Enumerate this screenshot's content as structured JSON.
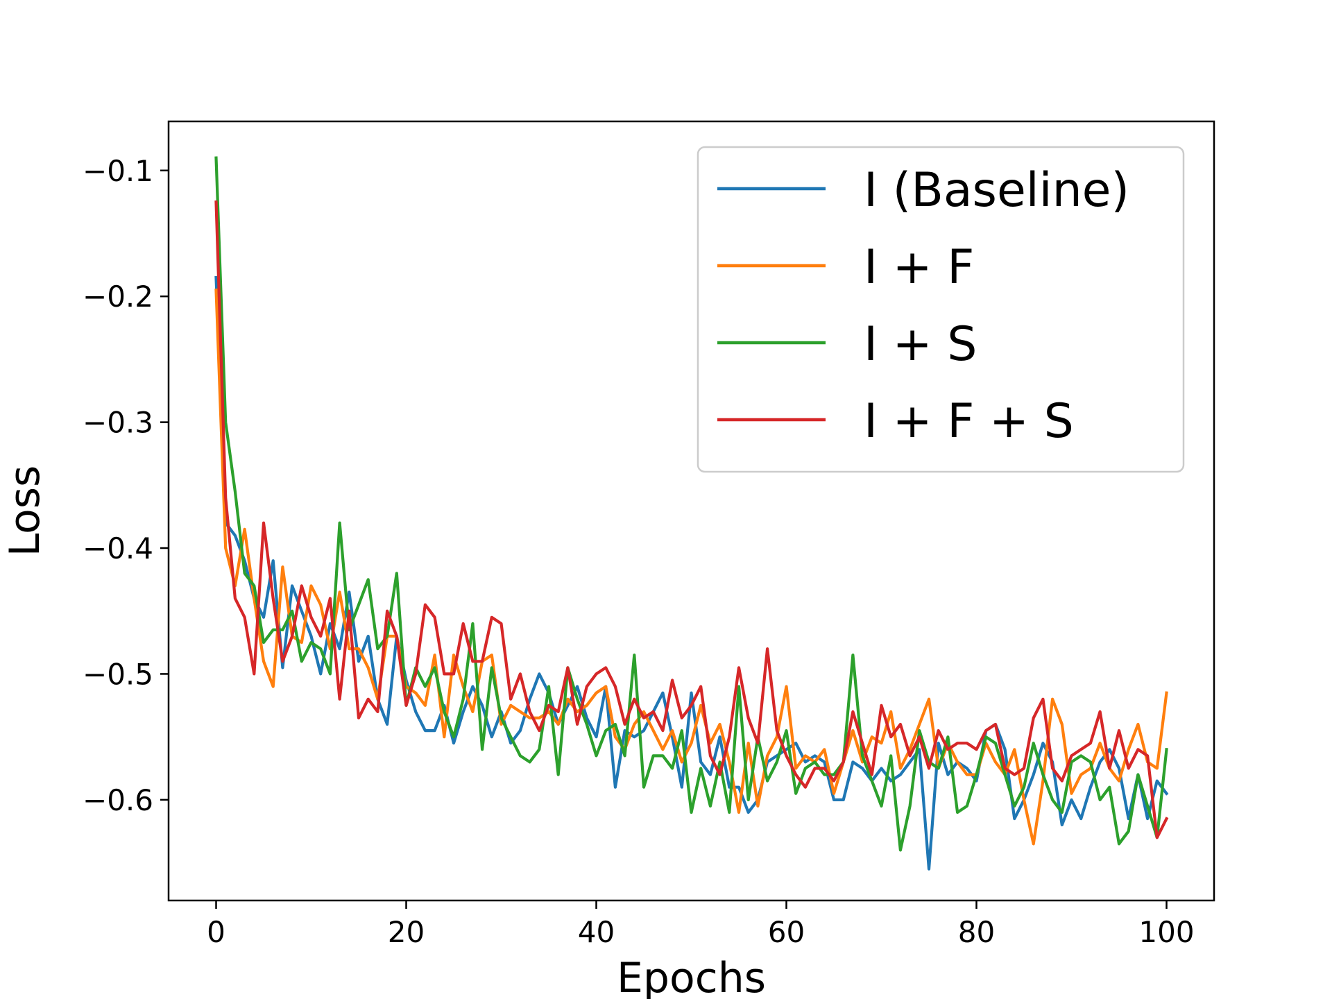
{
  "chart_data": {
    "type": "line",
    "title": "",
    "xlabel": "Epochs",
    "ylabel": "Loss",
    "xlim": [
      -5,
      105
    ],
    "ylim": [
      -0.68,
      -0.061
    ],
    "xticks": [
      0,
      20,
      40,
      60,
      80,
      100
    ],
    "yticks": [
      -0.1,
      -0.2,
      -0.3,
      -0.4,
      -0.5,
      -0.6
    ],
    "xtick_labels": [
      "0",
      "20",
      "40",
      "60",
      "80",
      "100"
    ],
    "ytick_labels": [
      "−0.1",
      "−0.2",
      "−0.3",
      "−0.4",
      "−0.5",
      "−0.6"
    ],
    "grid": false,
    "legend_position": "upper right",
    "series": [
      {
        "name": "I (Baseline)",
        "color": "#1f77b4",
        "x_start": 0,
        "x_step": 1,
        "values": [
          -0.185,
          -0.38,
          -0.39,
          -0.41,
          -0.44,
          -0.455,
          -0.41,
          -0.495,
          -0.43,
          -0.45,
          -0.47,
          -0.5,
          -0.46,
          -0.48,
          -0.435,
          -0.49,
          -0.47,
          -0.52,
          -0.54,
          -0.47,
          -0.505,
          -0.53,
          -0.545,
          -0.545,
          -0.525,
          -0.555,
          -0.53,
          -0.51,
          -0.525,
          -0.55,
          -0.53,
          -0.555,
          -0.545,
          -0.52,
          -0.5,
          -0.515,
          -0.54,
          -0.525,
          -0.51,
          -0.535,
          -0.55,
          -0.51,
          -0.59,
          -0.545,
          -0.55,
          -0.545,
          -0.53,
          -0.515,
          -0.55,
          -0.59,
          -0.515,
          -0.57,
          -0.58,
          -0.55,
          -0.59,
          -0.59,
          -0.61,
          -0.6,
          -0.57,
          -0.565,
          -0.56,
          -0.555,
          -0.57,
          -0.565,
          -0.57,
          -0.6,
          -0.6,
          -0.57,
          -0.575,
          -0.585,
          -0.575,
          -0.585,
          -0.58,
          -0.57,
          -0.56,
          -0.655,
          -0.555,
          -0.58,
          -0.57,
          -0.575,
          -0.585,
          -0.545,
          -0.54,
          -0.56,
          -0.615,
          -0.6,
          -0.58,
          -0.555,
          -0.57,
          -0.62,
          -0.6,
          -0.615,
          -0.59,
          -0.57,
          -0.56,
          -0.575,
          -0.615,
          -0.58,
          -0.615,
          -0.585,
          -0.595
        ]
      },
      {
        "name": "I + F",
        "color": "#ff7f0e",
        "x_start": 0,
        "x_step": 1,
        "values": [
          -0.195,
          -0.4,
          -0.43,
          -0.385,
          -0.44,
          -0.49,
          -0.51,
          -0.415,
          -0.47,
          -0.475,
          -0.43,
          -0.445,
          -0.48,
          -0.435,
          -0.48,
          -0.48,
          -0.495,
          -0.52,
          -0.47,
          -0.47,
          -0.51,
          -0.515,
          -0.525,
          -0.485,
          -0.55,
          -0.485,
          -0.51,
          -0.53,
          -0.49,
          -0.485,
          -0.54,
          -0.525,
          -0.53,
          -0.535,
          -0.535,
          -0.53,
          -0.54,
          -0.52,
          -0.53,
          -0.525,
          -0.515,
          -0.51,
          -0.55,
          -0.56,
          -0.54,
          -0.53,
          -0.545,
          -0.56,
          -0.545,
          -0.57,
          -0.555,
          -0.525,
          -0.555,
          -0.54,
          -0.57,
          -0.61,
          -0.555,
          -0.605,
          -0.565,
          -0.55,
          -0.51,
          -0.575,
          -0.565,
          -0.57,
          -0.56,
          -0.595,
          -0.57,
          -0.545,
          -0.57,
          -0.55,
          -0.555,
          -0.53,
          -0.575,
          -0.56,
          -0.54,
          -0.52,
          -0.575,
          -0.555,
          -0.57,
          -0.58,
          -0.58,
          -0.555,
          -0.57,
          -0.58,
          -0.56,
          -0.6,
          -0.635,
          -0.585,
          -0.52,
          -0.54,
          -0.595,
          -0.58,
          -0.575,
          -0.555,
          -0.575,
          -0.585,
          -0.56,
          -0.54,
          -0.57,
          -0.575,
          -0.515
        ]
      },
      {
        "name": "I + S",
        "color": "#2ca02c",
        "x_start": 0,
        "x_step": 1,
        "values": [
          -0.09,
          -0.3,
          -0.355,
          -0.42,
          -0.43,
          -0.475,
          -0.465,
          -0.465,
          -0.45,
          -0.49,
          -0.475,
          -0.48,
          -0.5,
          -0.38,
          -0.465,
          -0.445,
          -0.425,
          -0.48,
          -0.47,
          -0.42,
          -0.525,
          -0.495,
          -0.51,
          -0.495,
          -0.53,
          -0.55,
          -0.52,
          -0.46,
          -0.56,
          -0.495,
          -0.535,
          -0.55,
          -0.565,
          -0.57,
          -0.56,
          -0.51,
          -0.58,
          -0.495,
          -0.52,
          -0.54,
          -0.565,
          -0.545,
          -0.54,
          -0.565,
          -0.485,
          -0.59,
          -0.565,
          -0.565,
          -0.575,
          -0.545,
          -0.61,
          -0.575,
          -0.605,
          -0.57,
          -0.61,
          -0.51,
          -0.6,
          -0.55,
          -0.585,
          -0.57,
          -0.545,
          -0.595,
          -0.575,
          -0.57,
          -0.58,
          -0.58,
          -0.57,
          -0.485,
          -0.565,
          -0.585,
          -0.605,
          -0.565,
          -0.64,
          -0.605,
          -0.545,
          -0.57,
          -0.575,
          -0.55,
          -0.61,
          -0.605,
          -0.58,
          -0.55,
          -0.555,
          -0.58,
          -0.605,
          -0.59,
          -0.555,
          -0.58,
          -0.6,
          -0.61,
          -0.57,
          -0.565,
          -0.57,
          -0.6,
          -0.59,
          -0.635,
          -0.625,
          -0.58,
          -0.605,
          -0.63,
          -0.56
        ]
      },
      {
        "name": "I + F + S",
        "color": "#d62728",
        "x_start": 0,
        "x_step": 1,
        "values": [
          -0.125,
          -0.36,
          -0.44,
          -0.455,
          -0.5,
          -0.38,
          -0.44,
          -0.49,
          -0.47,
          -0.43,
          -0.455,
          -0.47,
          -0.44,
          -0.52,
          -0.45,
          -0.535,
          -0.52,
          -0.53,
          -0.45,
          -0.47,
          -0.525,
          -0.5,
          -0.445,
          -0.455,
          -0.5,
          -0.5,
          -0.46,
          -0.49,
          -0.49,
          -0.455,
          -0.46,
          -0.52,
          -0.5,
          -0.53,
          -0.545,
          -0.525,
          -0.53,
          -0.495,
          -0.54,
          -0.51,
          -0.5,
          -0.495,
          -0.51,
          -0.54,
          -0.52,
          -0.535,
          -0.53,
          -0.545,
          -0.505,
          -0.535,
          -0.525,
          -0.51,
          -0.565,
          -0.58,
          -0.55,
          -0.495,
          -0.535,
          -0.555,
          -0.48,
          -0.545,
          -0.565,
          -0.58,
          -0.59,
          -0.575,
          -0.575,
          -0.585,
          -0.57,
          -0.53,
          -0.555,
          -0.58,
          -0.525,
          -0.55,
          -0.54,
          -0.565,
          -0.55,
          -0.575,
          -0.545,
          -0.56,
          -0.555,
          -0.555,
          -0.56,
          -0.545,
          -0.54,
          -0.575,
          -0.58,
          -0.575,
          -0.535,
          -0.52,
          -0.575,
          -0.585,
          -0.565,
          -0.56,
          -0.555,
          -0.53,
          -0.575,
          -0.545,
          -0.575,
          -0.56,
          -0.565,
          -0.63,
          -0.615
        ]
      }
    ]
  }
}
